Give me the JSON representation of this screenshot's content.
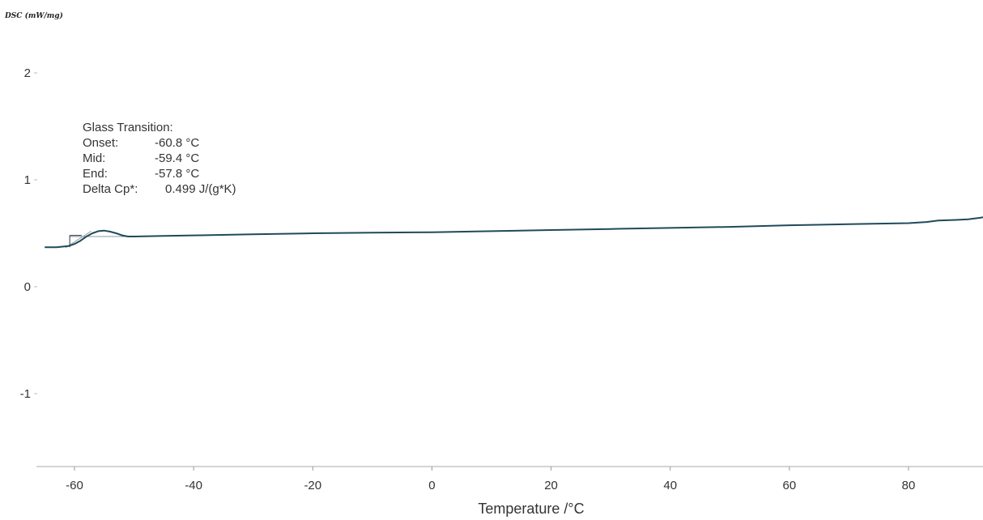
{
  "chart_data": {
    "type": "line",
    "ylabel": "DSC (mW/mg)",
    "xlabel": "Temperature /°C",
    "xlim": [
      -65,
      94
    ],
    "ylim": [
      -1.65,
      2.4
    ],
    "x_ticks": [
      -60,
      -40,
      -20,
      0,
      20,
      40,
      60,
      80
    ],
    "y_ticks": [
      2,
      1,
      0,
      -1
    ],
    "grid": false,
    "annotation": {
      "title": "Glass Transition:",
      "rows": [
        {
          "label": "Onset:",
          "value": "-60.8 °C"
        },
        {
          "label": "Mid:",
          "value": "-59.4 °C"
        },
        {
          "label": "End:",
          "value": "-57.8 °C"
        },
        {
          "label": "Delta Cp*:",
          "value": "0.499 J/(g*K)"
        }
      ]
    },
    "series": [
      {
        "color": "#1f4a5a",
        "points": [
          [
            -65,
            0.37
          ],
          [
            -63,
            0.37
          ],
          [
            -61,
            0.38
          ],
          [
            -60,
            0.4
          ],
          [
            -59,
            0.43
          ],
          [
            -58,
            0.47
          ],
          [
            -57,
            0.5
          ],
          [
            -56,
            0.52
          ],
          [
            -55,
            0.525
          ],
          [
            -54,
            0.515
          ],
          [
            -53,
            0.5
          ],
          [
            -52,
            0.48
          ],
          [
            -51,
            0.47
          ],
          [
            -50,
            0.47
          ],
          [
            -45,
            0.475
          ],
          [
            -40,
            0.48
          ],
          [
            -30,
            0.49
          ],
          [
            -20,
            0.5
          ],
          [
            -10,
            0.505
          ],
          [
            0,
            0.51
          ],
          [
            10,
            0.52
          ],
          [
            20,
            0.53
          ],
          [
            30,
            0.54
          ],
          [
            40,
            0.55
          ],
          [
            50,
            0.56
          ],
          [
            60,
            0.575
          ],
          [
            70,
            0.585
          ],
          [
            80,
            0.595
          ],
          [
            83,
            0.605
          ],
          [
            85,
            0.62
          ],
          [
            88,
            0.625
          ],
          [
            90,
            0.63
          ],
          [
            92,
            0.645
          ],
          [
            94,
            0.665
          ]
        ]
      }
    ],
    "baseline_color": "#8a9aa8"
  }
}
